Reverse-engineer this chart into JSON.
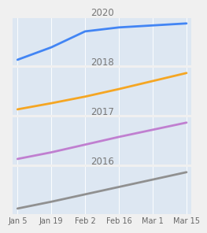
{
  "title": "",
  "x_labels": [
    "Jan 5",
    "Jan 19",
    "Feb 2",
    "Feb 16",
    "Mar 1",
    "Mar 15"
  ],
  "x_values": [
    0,
    1,
    2,
    3,
    4,
    5
  ],
  "panels": [
    {
      "label": "2020",
      "color": "#4285f4",
      "y_values": [
        0.05,
        0.3,
        0.62,
        0.7,
        0.74,
        0.78
      ]
    },
    {
      "label": "2018",
      "color": "#f5a623",
      "y_values": [
        0.05,
        0.18,
        0.32,
        0.48,
        0.65,
        0.82
      ]
    },
    {
      "label": "2017",
      "color": "#c07fd0",
      "y_values": [
        0.1,
        0.22,
        0.36,
        0.5,
        0.63,
        0.76
      ]
    },
    {
      "label": "2016",
      "color": "#909090",
      "y_values": [
        0.08,
        0.2,
        0.33,
        0.46,
        0.59,
        0.72
      ]
    }
  ],
  "bg_color": "#dde7f2",
  "fig_bg_color": "#f0f0f0",
  "label_fontsize": 8.5,
  "tick_fontsize": 7.0,
  "line_width": 2.0
}
